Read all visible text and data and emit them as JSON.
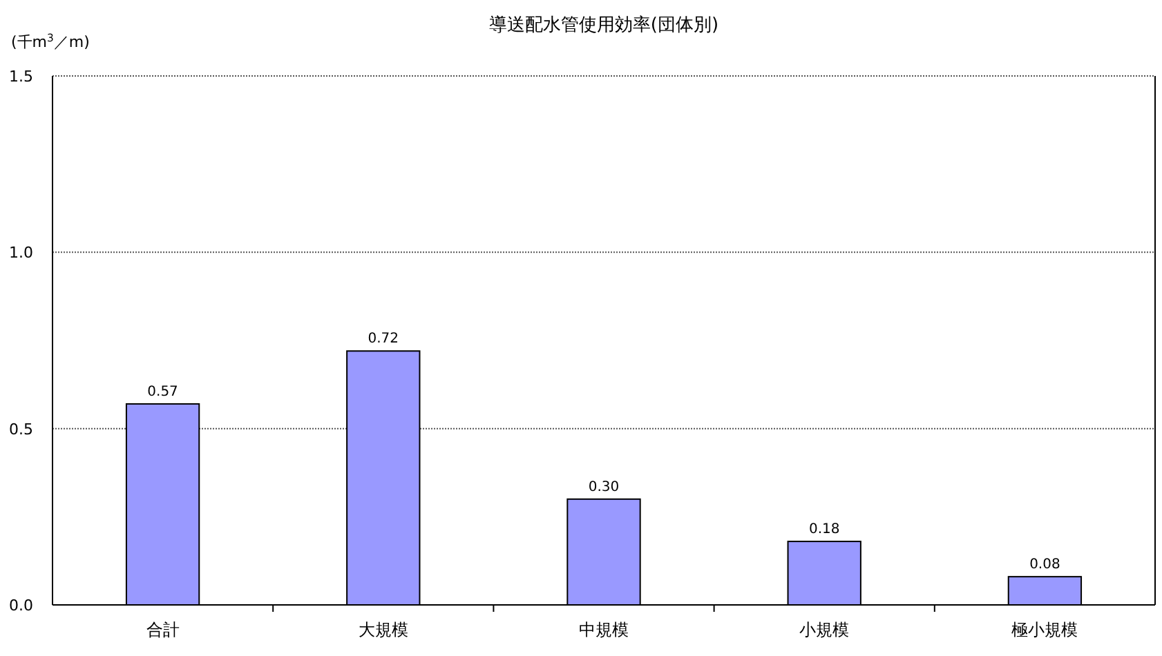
{
  "chart_data": {
    "type": "bar",
    "title": "導送配水管使用効率(団体別)",
    "ylabel": "(千m$^{3}$／m)",
    "categories": [
      "合計",
      "大規模",
      "中規模",
      "小規模",
      "極小規模"
    ],
    "values": [
      0.57,
      0.72,
      0.3,
      0.18,
      0.08
    ],
    "value_labels": [
      "0.57",
      "0.72",
      "0.30",
      "0.18",
      "0.08"
    ],
    "color": "#9999ff",
    "ylim": [
      0,
      1.5
    ],
    "yticks": [
      {
        "value": 0,
        "label": "0.0"
      },
      {
        "value": 0.5,
        "label": "0.5"
      },
      {
        "value": 1,
        "label": "1.0"
      },
      {
        "value": 1.5,
        "label": "1.5"
      }
    ],
    "grid": "y"
  }
}
